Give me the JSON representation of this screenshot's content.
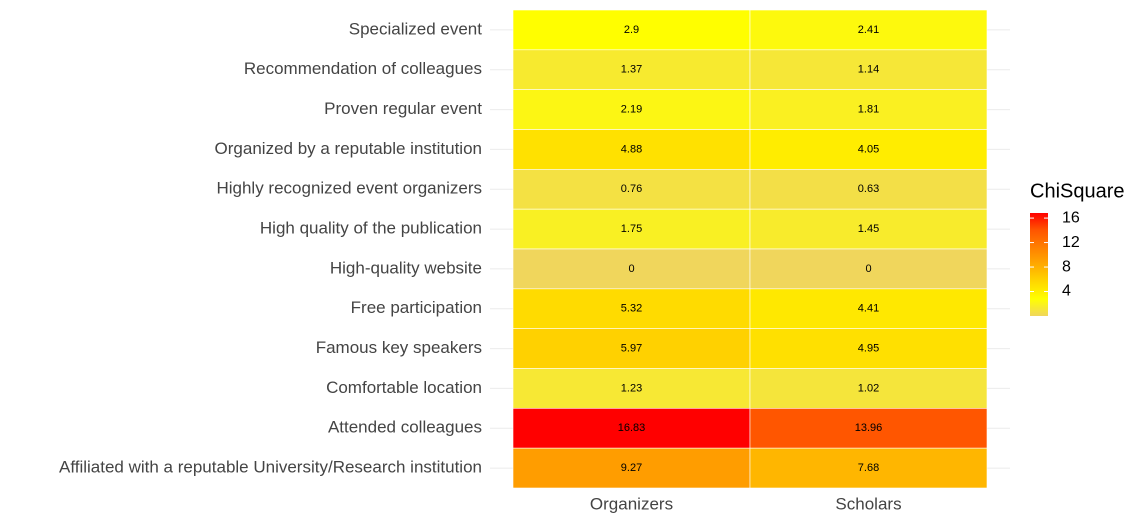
{
  "chart_data": {
    "type": "heatmap",
    "x": [
      "Organizers",
      "Scholars"
    ],
    "y": [
      "Specialized event",
      "Recommendation of colleagues",
      "Proven regular event",
      "Organized by a reputable institution",
      "Highly recognized event organizers",
      "High quality of the publication",
      "High-quality website",
      "Free participation",
      "Famous key speakers",
      "Comfortable location",
      "Attended colleagues",
      "Affiliated with a reputable University/Research institution"
    ],
    "values": [
      [
        2.9,
        2.41
      ],
      [
        1.37,
        1.14
      ],
      [
        2.19,
        1.81
      ],
      [
        4.88,
        4.05
      ],
      [
        0.76,
        0.63
      ],
      [
        1.75,
        1.45
      ],
      [
        0,
        0
      ],
      [
        5.32,
        4.41
      ],
      [
        5.97,
        4.95
      ],
      [
        1.23,
        1.02
      ],
      [
        16.83,
        13.96
      ],
      [
        9.27,
        7.68
      ]
    ],
    "legend_title": "ChiSquare",
    "zlim": [
      0,
      16.83
    ],
    "zticks": [
      4,
      8,
      12,
      16
    ],
    "colors": [
      "#f0d65c",
      "#ffff00",
      "#ffd700",
      "#ffaa00",
      "#ff8000",
      "#ff5500",
      "#ff0000"
    ],
    "grid": true,
    "legend": "right"
  }
}
